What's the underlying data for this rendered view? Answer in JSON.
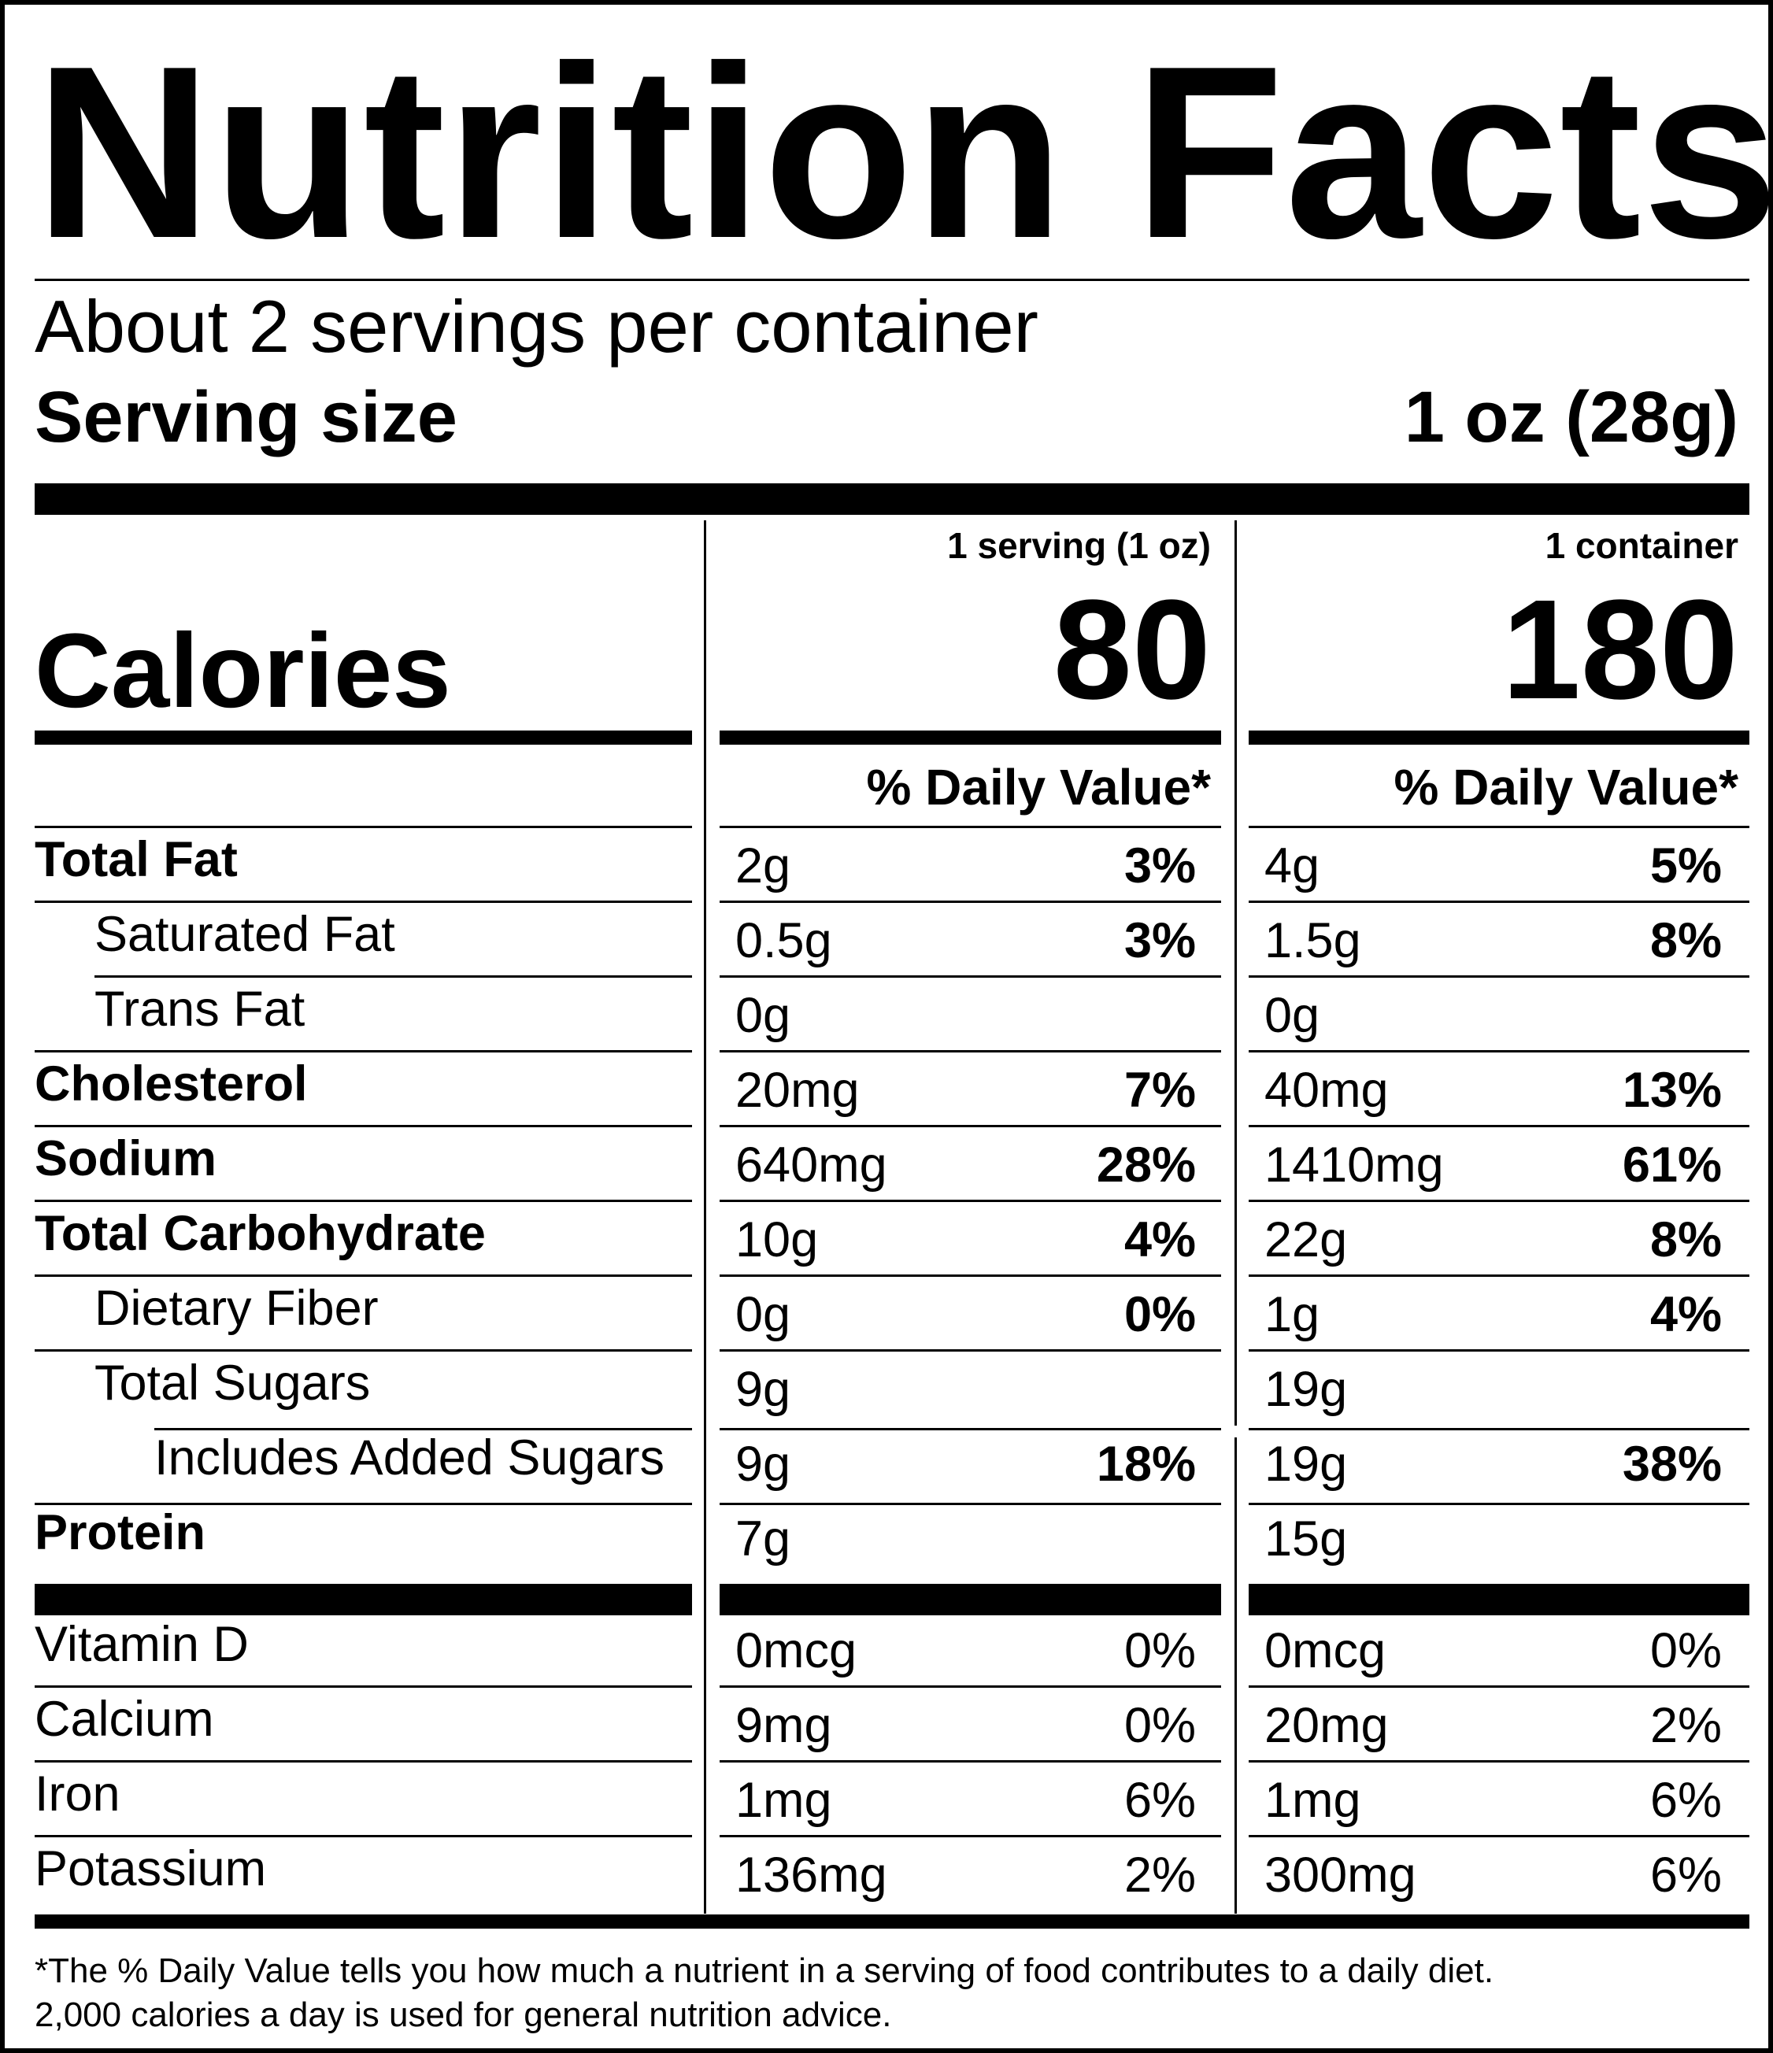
{
  "title": "Nutrition Facts",
  "servings_per_container": "About 2 servings per container",
  "serving_size_label": "Serving size",
  "serving_size_value": "1 oz (28g)",
  "columns": [
    {
      "header": "1 serving (1 oz)",
      "calories": "80",
      "dv_header": "% Daily Value*"
    },
    {
      "header": "1 container",
      "calories": "180",
      "dv_header": "% Daily Value*"
    }
  ],
  "calories_label": "Calories",
  "nutrients": [
    {
      "label": "Total Fat",
      "bold": true,
      "indent": 0,
      "serving": {
        "amount": "2g",
        "dv": "3%"
      },
      "container": {
        "amount": "4g",
        "dv": "5%"
      }
    },
    {
      "label": "Saturated Fat",
      "bold": false,
      "indent": 1,
      "serving": {
        "amount": "0.5g",
        "dv": "3%"
      },
      "container": {
        "amount": "1.5g",
        "dv": "8%"
      }
    },
    {
      "label": "Trans Fat",
      "bold": false,
      "indent": 1,
      "serving": {
        "amount": "0g",
        "dv": ""
      },
      "container": {
        "amount": "0g",
        "dv": ""
      }
    },
    {
      "label": "Cholesterol",
      "bold": true,
      "indent": 0,
      "serving": {
        "amount": "20mg",
        "dv": "7%"
      },
      "container": {
        "amount": "40mg",
        "dv": "13%"
      }
    },
    {
      "label": "Sodium",
      "bold": true,
      "indent": 0,
      "serving": {
        "amount": "640mg",
        "dv": "28%"
      },
      "container": {
        "amount": "1410mg",
        "dv": "61%"
      }
    },
    {
      "label": "Total Carbohydrate",
      "bold": true,
      "indent": 0,
      "serving": {
        "amount": "10g",
        "dv": "4%"
      },
      "container": {
        "amount": "22g",
        "dv": "8%"
      }
    },
    {
      "label": "Dietary Fiber",
      "bold": false,
      "indent": 1,
      "serving": {
        "amount": "0g",
        "dv": "0%"
      },
      "container": {
        "amount": "1g",
        "dv": "4%"
      }
    },
    {
      "label": "Total Sugars",
      "bold": false,
      "indent": 1,
      "serving": {
        "amount": "9g",
        "dv": ""
      },
      "container": {
        "amount": "19g",
        "dv": ""
      }
    },
    {
      "label": "Includes Added Sugars",
      "bold": false,
      "indent": 2,
      "serving": {
        "amount": "9g",
        "dv": "18%"
      },
      "container": {
        "amount": "19g",
        "dv": "38%"
      }
    },
    {
      "label": "Protein",
      "bold": true,
      "indent": 0,
      "serving": {
        "amount": "7g",
        "dv": ""
      },
      "container": {
        "amount": "15g",
        "dv": ""
      }
    }
  ],
  "vitamins": [
    {
      "label": "Vitamin D",
      "serving": {
        "amount": "0mcg",
        "dv": "0%"
      },
      "container": {
        "amount": "0mcg",
        "dv": "0%"
      }
    },
    {
      "label": "Calcium",
      "serving": {
        "amount": "9mg",
        "dv": "0%"
      },
      "container": {
        "amount": "20mg",
        "dv": "2%"
      }
    },
    {
      "label": "Iron",
      "serving": {
        "amount": "1mg",
        "dv": "6%"
      },
      "container": {
        "amount": "1mg",
        "dv": "6%"
      }
    },
    {
      "label": "Potassium",
      "serving": {
        "amount": "136mg",
        "dv": "2%"
      },
      "container": {
        "amount": "300mg",
        "dv": "6%"
      }
    }
  ],
  "footnote": [
    "*The % Daily Value tells you how much a nutrient in a serving of food contributes to a daily diet.",
    "2,000 calories a day is used for general nutrition advice."
  ]
}
